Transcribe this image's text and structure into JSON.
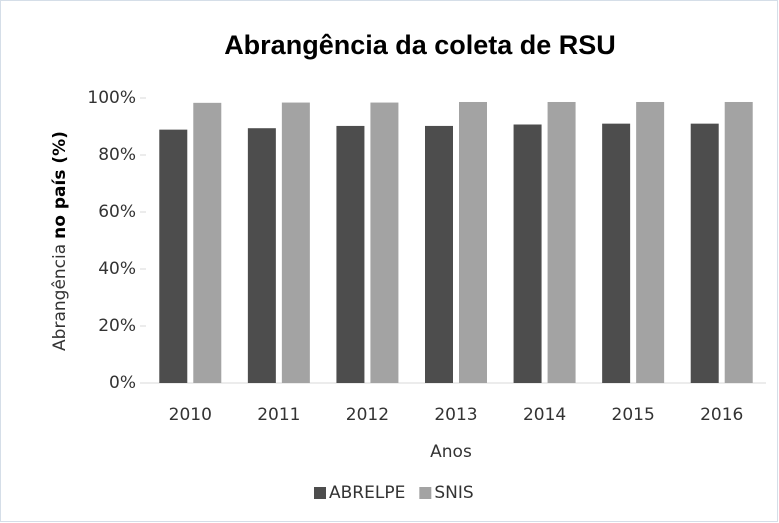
{
  "chart_data": {
    "type": "bar",
    "title": "Abrangência da coleta de RSU",
    "xlabel": "Anos",
    "ylabel": [
      "Abrangência",
      "no país (%)"
    ],
    "categories": [
      "2010",
      "2011",
      "2012",
      "2013",
      "2014",
      "2015",
      "2016"
    ],
    "series": [
      {
        "name": "ABRELPE",
        "color": "#4d4d4d",
        "values": [
          88.9,
          89.4,
          90.2,
          90.2,
          90.7,
          91.0,
          91.0
        ]
      },
      {
        "name": "SNIS",
        "color": "#a3a3a3",
        "values": [
          98.3,
          98.4,
          98.4,
          98.6,
          98.6,
          98.6,
          98.6
        ]
      }
    ],
    "ylim": [
      0,
      100
    ],
    "yticks": [
      {
        "value": 0,
        "label": "0%"
      },
      {
        "value": 20,
        "label": "20%"
      },
      {
        "value": 40,
        "label": "40%"
      },
      {
        "value": 60,
        "label": "60%"
      },
      {
        "value": 80,
        "label": "80%"
      },
      {
        "value": 100,
        "label": "100%"
      }
    ],
    "legend": "bottom"
  }
}
